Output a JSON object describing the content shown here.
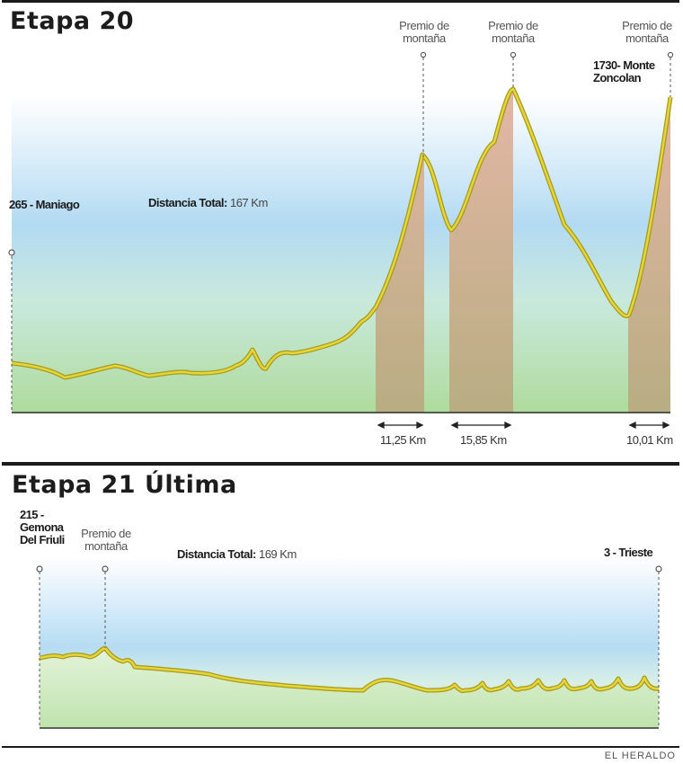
{
  "stage20": {
    "title": "Etapa 20",
    "start_label": "265 - Maniago",
    "total_key": "Distancia Total:",
    "total_value": "167 Km",
    "finish_label_line1": "1730- Monte",
    "finish_label_line2": "Zoncolan",
    "mountain_line1": "Premio de",
    "mountain_line2": "montaña",
    "climb_distances": [
      "11,25 Km",
      "15,85 Km",
      "10,01 Km"
    ]
  },
  "stage21": {
    "title": "Etapa 21 Última",
    "start_label_line1": "215 -",
    "start_label_line2": "Gemona",
    "start_label_line3": "Del Friuli",
    "mountain_line1": "Premio de",
    "mountain_line2": "montaña",
    "total_key": "Distancia Total:",
    "total_value": "169 Km",
    "finish_label": "3 - Trieste"
  },
  "credit": "EL HERALDO",
  "colors": {
    "profile_line": "#d7c92a",
    "profile_line_edge": "#a89a1c",
    "ground_green": "#c4e6b6",
    "sky_blue": "#b5dcf3",
    "climb_fill": "#cfb09b"
  }
}
